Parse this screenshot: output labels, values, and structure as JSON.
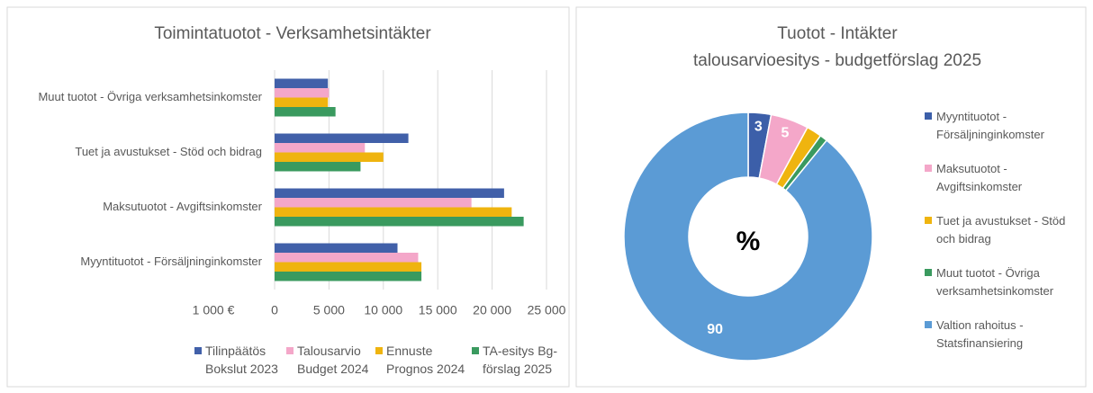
{
  "chart_data": [
    {
      "type": "bar",
      "orientation": "horizontal",
      "title": "Toimintatuotot - Verksamhetsintäkter",
      "x_axis_label": "1 000 €",
      "categories": [
        "Muut tuotot - Övriga verksamhetsinkomster",
        "Tuet ja avustukset - Stöd och bidrag",
        "Maksutuotot - Avgiftsinkomster",
        "Myyntituotot - Försäljninginkomster"
      ],
      "series": [
        {
          "name": "Tilinpäätös Bokslut 2023",
          "color": "#4160a9",
          "values": [
            4900,
            12300,
            21100,
            11300
          ]
        },
        {
          "name": "Talousarvio Budget 2024",
          "color": "#f4a7c9",
          "values": [
            5000,
            8300,
            18100,
            13200
          ]
        },
        {
          "name": "Ennuste Prognos 2024",
          "color": "#efb40f",
          "values": [
            4900,
            10000,
            21800,
            13500
          ]
        },
        {
          "name": "TA-esitys Bg-förslag 2025",
          "color": "#3a9a5f",
          "values": [
            5600,
            7900,
            22900,
            13500
          ]
        }
      ],
      "xlim": [
        0,
        25000
      ],
      "xticks": [
        0,
        {
          "value": 5000,
          "label": "5 000"
        },
        {
          "value": 10000,
          "label": "10 000"
        },
        {
          "value": 15000,
          "label": "15 000"
        },
        {
          "value": 20000,
          "label": "20 000"
        },
        {
          "value": 25000,
          "label": "25 000"
        }
      ],
      "grid": true,
      "legend": "bottom"
    },
    {
      "type": "donut",
      "title": "Tuotot - Intäkter",
      "subtitle": "talousarvioesitys - budgetförslag 2025",
      "center_label": "%",
      "categories": [
        "Myyntituotot - Försäljninginkomster",
        "Maksutuotot - Avgiftsinkomster",
        "Tuet ja avustukset - Stöd och bidrag",
        "Muut tuotot - Övriga verksamhetsinkomster",
        "Valtion rahoitus - Statsfinansiering"
      ],
      "values": [
        3,
        5,
        2,
        1,
        90
      ],
      "colors": [
        "#3c5fa9",
        "#f4a7c9",
        "#efb40f",
        "#3a9a5f",
        "#5b9bd5"
      ],
      "legend": "right"
    }
  ]
}
